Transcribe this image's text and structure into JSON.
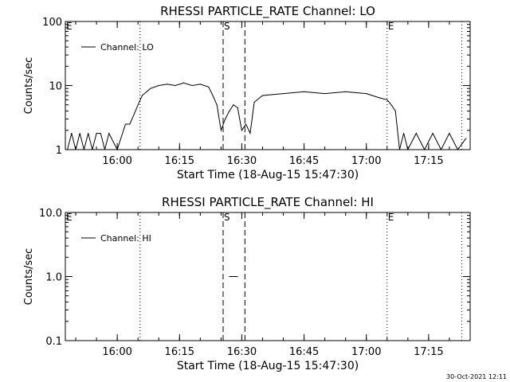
{
  "chart_data": [
    {
      "type": "line",
      "title": "RHESSI PARTICLE_RATE Channel: LO",
      "xlabel": "Start Time (18-Aug-15 15:47:30)",
      "ylabel": "Counts/sec",
      "yscale": "log",
      "ylim": [
        1,
        100
      ],
      "xlim": [
        "15:47:30",
        "17:25:00"
      ],
      "x_ticks": [
        "16:00",
        "16:15",
        "16:30",
        "16:45",
        "17:00",
        "17:15"
      ],
      "y_ticks": [
        "1",
        "10",
        "100"
      ],
      "legend": {
        "position": "top-left",
        "entries": [
          "Channel: LO"
        ]
      },
      "event_markers": [
        {
          "label": "E",
          "time": "15:47:30",
          "style": "dotted"
        },
        {
          "label": "",
          "time": "16:05:30",
          "style": "dotted"
        },
        {
          "label": "S",
          "time": "16:25:30",
          "style": "dashed"
        },
        {
          "label": "",
          "time": "16:30:45",
          "style": "dashed"
        },
        {
          "label": "E",
          "time": "17:05:00",
          "style": "dotted"
        },
        {
          "label": "",
          "time": "17:23:00",
          "style": "dotted"
        }
      ],
      "series": [
        {
          "name": "Channel: LO",
          "x": [
            "15:48",
            "15:49",
            "15:50",
            "15:51",
            "15:52",
            "15:53",
            "15:54",
            "15:55",
            "15:56",
            "15:57",
            "15:58",
            "16:00",
            "16:02",
            "16:03",
            "16:04",
            "16:05",
            "16:06",
            "16:08",
            "16:10",
            "16:12",
            "16:14",
            "16:16",
            "16:18",
            "16:20",
            "16:22",
            "16:23",
            "16:24",
            "16:25",
            "16:26",
            "16:27",
            "16:28",
            "16:29",
            "16:30",
            "16:31",
            "16:32",
            "16:33",
            "16:35",
            "16:40",
            "16:45",
            "16:50",
            "16:55",
            "17:00",
            "17:03",
            "17:05",
            "17:06",
            "17:07",
            "17:08",
            "17:09",
            "17:10",
            "17:12",
            "17:14",
            "17:16",
            "17:18",
            "17:20",
            "17:22",
            "17:24"
          ],
          "values": [
            1.0,
            1.8,
            1.0,
            1.8,
            1.0,
            1.8,
            1.0,
            1.8,
            1.8,
            1.0,
            1.8,
            1.0,
            2.5,
            2.5,
            3.5,
            5.0,
            7.0,
            9.0,
            10.0,
            10.5,
            10.0,
            11.0,
            10.0,
            10.5,
            9.5,
            7.0,
            5.0,
            2.0,
            3.0,
            4.0,
            5.0,
            4.5,
            2.0,
            2.5,
            1.8,
            5.5,
            7.0,
            7.5,
            8.0,
            7.5,
            8.0,
            7.5,
            6.5,
            6.0,
            5.0,
            4.0,
            1.0,
            1.8,
            1.0,
            1.8,
            1.0,
            1.8,
            1.0,
            1.8,
            1.0,
            1.5
          ]
        }
      ]
    },
    {
      "type": "line",
      "title": "RHESSI PARTICLE_RATE Channel: HI",
      "xlabel": "Start Time (18-Aug-15 15:47:30)",
      "ylabel": "Counts/sec",
      "yscale": "log",
      "ylim": [
        0.1,
        10
      ],
      "xlim": [
        "15:47:30",
        "17:25:00"
      ],
      "x_ticks": [
        "16:00",
        "16:15",
        "16:30",
        "16:45",
        "17:00",
        "17:15"
      ],
      "y_ticks": [
        "0.1",
        "1.0",
        "10.0"
      ],
      "legend": {
        "position": "top-left",
        "entries": [
          "Channel: HI"
        ]
      },
      "event_markers": [
        {
          "label": "E",
          "time": "15:47:30",
          "style": "dotted"
        },
        {
          "label": "",
          "time": "16:05:30",
          "style": "dotted"
        },
        {
          "label": "S",
          "time": "16:25:30",
          "style": "dashed"
        },
        {
          "label": "",
          "time": "16:30:45",
          "style": "dashed"
        },
        {
          "label": "E",
          "time": "17:05:00",
          "style": "dotted"
        },
        {
          "label": "",
          "time": "17:23:00",
          "style": "dotted"
        }
      ],
      "series": [
        {
          "name": "Channel: HI",
          "x": [
            "16:27",
            "16:29"
          ],
          "values": [
            1.0,
            1.0
          ]
        }
      ]
    }
  ],
  "footer": {
    "timestamp": "30-Oct-2021 12:11"
  }
}
